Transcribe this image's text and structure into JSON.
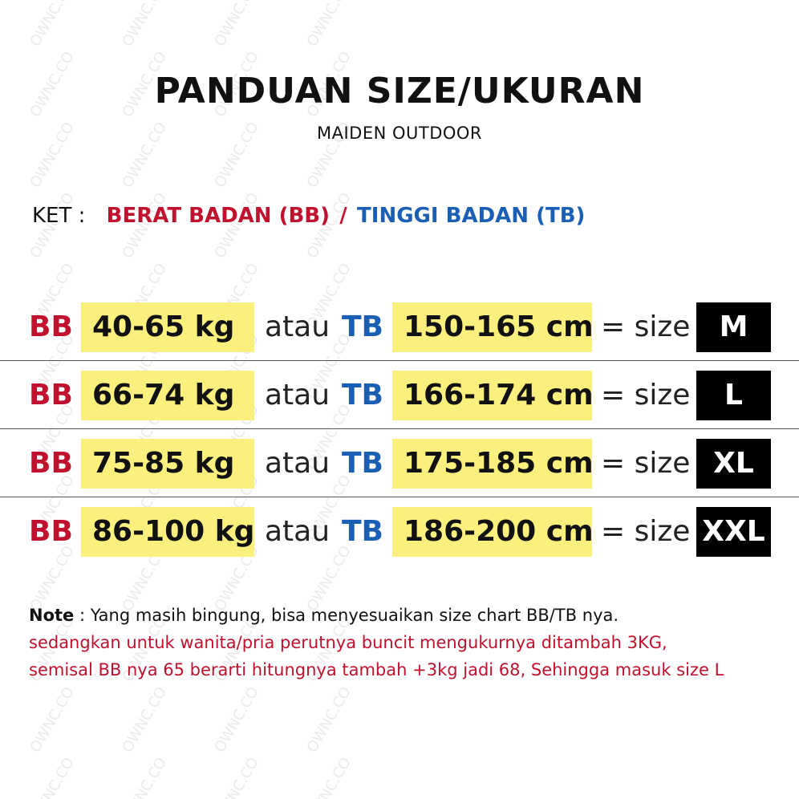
{
  "header": {
    "title": "PANDUAN SIZE/UKURAN",
    "subtitle": "MAIDEN OUTDOOR"
  },
  "legend": {
    "label": "KET :",
    "bb_text": "BERAT BADAN (BB)",
    "separator": "/",
    "tb_text": "TINGGI BADAN (TB)"
  },
  "rows": [
    {
      "bb": "BB",
      "weight": "40-65 kg",
      "atau": "atau",
      "tb": "TB",
      "height": "150-165 cm",
      "eq": "= size",
      "size": "M"
    },
    {
      "bb": "BB",
      "weight": "66-74 kg",
      "atau": "atau",
      "tb": "TB",
      "height": "166-174 cm",
      "eq": "= size",
      "size": "L"
    },
    {
      "bb": "BB",
      "weight": "75-85 kg",
      "atau": "atau",
      "tb": "TB",
      "height": "175-185 cm",
      "eq": "= size",
      "size": "XL"
    },
    {
      "bb": "BB",
      "weight": "86-100 kg",
      "atau": "atau",
      "tb": "TB",
      "height": "186-200 cm",
      "eq": "= size",
      "size": "XXL"
    }
  ],
  "note": {
    "label": "Note",
    "line1": " : Yang masih bingung, bisa menyesuaikan size chart BB/TB nya.",
    "line2": "sedangkan untuk wanita/pria perutnya buncit mengukurnya ditambah 3KG,",
    "line3": "semisal BB nya 65 berarti hitungnya tambah +3kg jadi 68, Sehingga masuk size L"
  },
  "watermark": "OWNC.CO",
  "colors": {
    "red": "#c0112e",
    "blue": "#1a5fb4",
    "highlight": "#fbef7e",
    "size_box": "#000000"
  }
}
